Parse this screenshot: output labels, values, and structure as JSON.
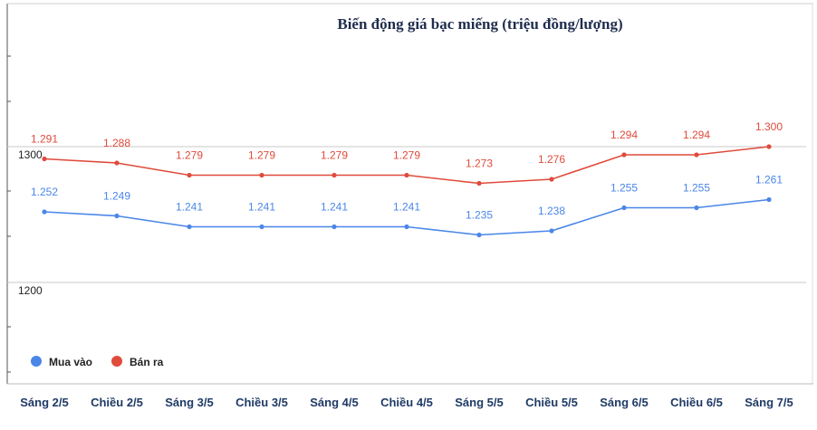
{
  "chart_data": {
    "type": "line",
    "title": "Biến động giá bạc miếng (triệu đồng/lượng)",
    "xlabel": "",
    "ylabel": "",
    "categories": [
      "Sáng 2/5",
      "Chiều 2/5",
      "Sáng 3/5",
      "Chiều 3/5",
      "Sáng 4/5",
      "Chiều 4/5",
      "Sáng 5/5",
      "Chiều 5/5",
      "Sáng 6/5",
      "Chiều 6/5",
      "Sáng 7/5"
    ],
    "series": [
      {
        "name": "Mua vào",
        "color": "#4a86e8",
        "values": [
          1252,
          1249,
          1241,
          1241,
          1241,
          1241,
          1235,
          1238,
          1255,
          1255,
          1261
        ],
        "labels": [
          "1.252",
          "1.249",
          "1.241",
          "1.241",
          "1.241",
          "1.241",
          "1.235",
          "1.238",
          "1.255",
          "1.255",
          "1.261"
        ]
      },
      {
        "name": "Bán ra",
        "color": "#e04b3c",
        "values": [
          1291,
          1288,
          1279,
          1279,
          1279,
          1279,
          1273,
          1276,
          1294,
          1294,
          1300
        ],
        "labels": [
          "1.291",
          "1.288",
          "1.279",
          "1.279",
          "1.279",
          "1.279",
          "1.273",
          "1.276",
          "1.294",
          "1.294",
          "1.300"
        ]
      }
    ],
    "yticks": [
      1200,
      1300
    ],
    "ytick_labels": [
      "1200",
      "1300"
    ],
    "grid": true,
    "legend_position": "bottom-left"
  }
}
